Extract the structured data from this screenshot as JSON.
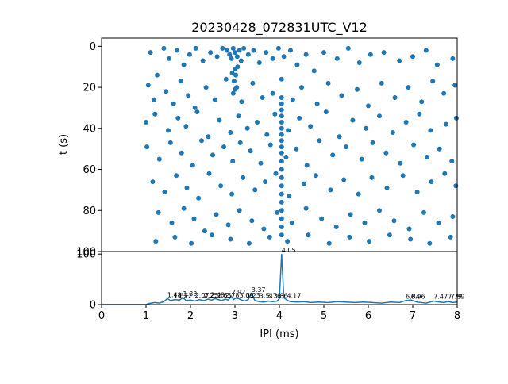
{
  "chart_data": [
    {
      "type": "scatter",
      "title": "20230428_072831UTC_V12",
      "xlabel": "",
      "ylabel": "t (s)",
      "xlim": [
        0,
        8
      ],
      "ylim": [
        100,
        -4
      ],
      "y_inverted": true,
      "yticks": [
        0,
        20,
        40,
        60,
        80,
        100
      ],
      "color": "#1f77b4",
      "grid": false,
      "points": [
        [
          1.1,
          3
        ],
        [
          1.25,
          14
        ],
        [
          1.4,
          1
        ],
        [
          1.52,
          6
        ],
        [
          1.7,
          2
        ],
        [
          1.85,
          9
        ],
        [
          1.98,
          4
        ],
        [
          2.12,
          1
        ],
        [
          2.28,
          7
        ],
        [
          2.45,
          3
        ],
        [
          2.6,
          5
        ],
        [
          2.72,
          1
        ],
        [
          2.82,
          2
        ],
        [
          2.88,
          4
        ],
        [
          2.92,
          6
        ],
        [
          2.96,
          1
        ],
        [
          3.0,
          3
        ],
        [
          3.05,
          5
        ],
        [
          3.1,
          2
        ],
        [
          3.14,
          7
        ],
        [
          3.2,
          1
        ],
        [
          3.3,
          4
        ],
        [
          3.42,
          2
        ],
        [
          3.55,
          8
        ],
        [
          3.7,
          3
        ],
        [
          3.85,
          6
        ],
        [
          3.98,
          1
        ],
        [
          4.1,
          5
        ],
        [
          4.25,
          2
        ],
        [
          4.4,
          9
        ],
        [
          4.6,
          4
        ],
        [
          4.78,
          12
        ],
        [
          5.0,
          3
        ],
        [
          5.3,
          6
        ],
        [
          5.55,
          1
        ],
        [
          5.8,
          8
        ],
        [
          6.05,
          4
        ],
        [
          6.35,
          3
        ],
        [
          6.7,
          7
        ],
        [
          7.0,
          5
        ],
        [
          7.3,
          2
        ],
        [
          7.55,
          9
        ],
        [
          7.9,
          6
        ],
        [
          1.05,
          19
        ],
        [
          1.18,
          26
        ],
        [
          1.45,
          22
        ],
        [
          1.62,
          28
        ],
        [
          1.78,
          17
        ],
        [
          1.95,
          24
        ],
        [
          2.1,
          30
        ],
        [
          2.35,
          20
        ],
        [
          2.55,
          26
        ],
        [
          2.8,
          16
        ],
        [
          3.0,
          21
        ],
        [
          3.15,
          27
        ],
        [
          3.4,
          18
        ],
        [
          3.62,
          25
        ],
        [
          3.85,
          23
        ],
        [
          4.05,
          16
        ],
        [
          4.3,
          26
        ],
        [
          4.5,
          20
        ],
        [
          4.85,
          28
        ],
        [
          5.1,
          18
        ],
        [
          5.4,
          24
        ],
        [
          5.75,
          21
        ],
        [
          6.0,
          29
        ],
        [
          6.3,
          18
        ],
        [
          6.6,
          25
        ],
        [
          6.9,
          20
        ],
        [
          7.2,
          27
        ],
        [
          7.45,
          17
        ],
        [
          7.7,
          23
        ],
        [
          7.95,
          19
        ],
        [
          1.0,
          37
        ],
        [
          1.2,
          33
        ],
        [
          1.5,
          41
        ],
        [
          1.72,
          35
        ],
        [
          1.9,
          39
        ],
        [
          2.15,
          32
        ],
        [
          2.4,
          44
        ],
        [
          2.65,
          36
        ],
        [
          2.9,
          42
        ],
        [
          3.08,
          34
        ],
        [
          3.28,
          40
        ],
        [
          3.5,
          37
        ],
        [
          3.72,
          43
        ],
        [
          3.9,
          33
        ],
        [
          4.2,
          41
        ],
        [
          4.45,
          35
        ],
        [
          4.7,
          39
        ],
        [
          5.05,
          32
        ],
        [
          5.35,
          44
        ],
        [
          5.65,
          36
        ],
        [
          5.95,
          40
        ],
        [
          6.25,
          34
        ],
        [
          6.55,
          42
        ],
        [
          6.85,
          37
        ],
        [
          7.15,
          33
        ],
        [
          7.4,
          41
        ],
        [
          7.75,
          38
        ],
        [
          7.98,
          35
        ],
        [
          1.02,
          49
        ],
        [
          1.3,
          55
        ],
        [
          1.55,
          47
        ],
        [
          1.8,
          52
        ],
        [
          2.05,
          58
        ],
        [
          2.25,
          46
        ],
        [
          2.5,
          53
        ],
        [
          2.75,
          49
        ],
        [
          2.95,
          56
        ],
        [
          3.12,
          47
        ],
        [
          3.35,
          51
        ],
        [
          3.58,
          57
        ],
        [
          3.8,
          48
        ],
        [
          4.15,
          54
        ],
        [
          4.38,
          50
        ],
        [
          4.62,
          58
        ],
        [
          4.9,
          46
        ],
        [
          5.2,
          53
        ],
        [
          5.5,
          49
        ],
        [
          5.85,
          55
        ],
        [
          6.1,
          47
        ],
        [
          6.4,
          52
        ],
        [
          6.72,
          57
        ],
        [
          7.02,
          48
        ],
        [
          7.32,
          54
        ],
        [
          7.6,
          50
        ],
        [
          7.88,
          56
        ],
        [
          1.15,
          66
        ],
        [
          1.42,
          71
        ],
        [
          1.68,
          63
        ],
        [
          1.92,
          69
        ],
        [
          2.18,
          74
        ],
        [
          2.42,
          62
        ],
        [
          2.68,
          68
        ],
        [
          2.93,
          72
        ],
        [
          3.18,
          64
        ],
        [
          3.45,
          70
        ],
        [
          3.68,
          66
        ],
        [
          3.92,
          62
        ],
        [
          4.22,
          73
        ],
        [
          4.55,
          67
        ],
        [
          4.82,
          63
        ],
        [
          5.15,
          70
        ],
        [
          5.45,
          65
        ],
        [
          5.78,
          72
        ],
        [
          6.08,
          64
        ],
        [
          6.42,
          69
        ],
        [
          6.78,
          63
        ],
        [
          7.1,
          71
        ],
        [
          7.42,
          66
        ],
        [
          7.72,
          62
        ],
        [
          7.97,
          68
        ],
        [
          1.28,
          81
        ],
        [
          1.58,
          86
        ],
        [
          1.85,
          79
        ],
        [
          2.08,
          84
        ],
        [
          2.32,
          90
        ],
        [
          2.58,
          82
        ],
        [
          2.85,
          87
        ],
        [
          3.1,
          80
        ],
        [
          3.38,
          85
        ],
        [
          3.65,
          89
        ],
        [
          3.95,
          81
        ],
        [
          4.28,
          86
        ],
        [
          4.6,
          79
        ],
        [
          4.95,
          84
        ],
        [
          5.28,
          88
        ],
        [
          5.6,
          82
        ],
        [
          5.92,
          86
        ],
        [
          6.25,
          80
        ],
        [
          6.58,
          85
        ],
        [
          6.92,
          89
        ],
        [
          7.25,
          81
        ],
        [
          7.58,
          86
        ],
        [
          7.9,
          83
        ],
        [
          1.22,
          95
        ],
        [
          1.65,
          93
        ],
        [
          2.02,
          96
        ],
        [
          2.48,
          92
        ],
        [
          2.9,
          94
        ],
        [
          3.32,
          96
        ],
        [
          3.78,
          93
        ],
        [
          4.18,
          95
        ],
        [
          4.65,
          92
        ],
        [
          5.12,
          96
        ],
        [
          5.58,
          93
        ],
        [
          6.02,
          95
        ],
        [
          6.48,
          92
        ],
        [
          6.95,
          94
        ],
        [
          7.38,
          96
        ],
        [
          7.85,
          93
        ],
        [
          4.05,
          25
        ],
        [
          4.05,
          28
        ],
        [
          4.05,
          31
        ],
        [
          4.05,
          34
        ],
        [
          4.05,
          37
        ],
        [
          4.05,
          40
        ],
        [
          4.05,
          43
        ],
        [
          4.05,
          46
        ],
        [
          4.05,
          49
        ],
        [
          4.05,
          52
        ],
        [
          4.05,
          56
        ],
        [
          4.05,
          60
        ],
        [
          4.05,
          64
        ],
        [
          4.05,
          68
        ],
        [
          4.05,
          72
        ],
        [
          4.05,
          76
        ],
        [
          4.05,
          80
        ],
        [
          4.05,
          84
        ],
        [
          4.05,
          88
        ],
        [
          4.05,
          92
        ],
        [
          3.0,
          11
        ],
        [
          3.02,
          14
        ],
        [
          2.98,
          17
        ],
        [
          3.04,
          20
        ],
        [
          2.96,
          23
        ],
        [
          3.06,
          10
        ],
        [
          2.94,
          13
        ]
      ]
    },
    {
      "type": "line",
      "title": "",
      "xlabel": "IPI (ms)",
      "ylabel": "",
      "xlim": [
        0,
        8
      ],
      "ylim": [
        0,
        105
      ],
      "xticks": [
        0,
        1,
        2,
        3,
        4,
        5,
        6,
        7,
        8
      ],
      "yticks": [
        0,
        100
      ],
      "color": "#1f77b4",
      "grid": false,
      "x": [
        0,
        1.0,
        1.05,
        1.2,
        1.3,
        1.4,
        1.48,
        1.55,
        1.65,
        1.75,
        1.83,
        1.9,
        2.0,
        2.1,
        2.2,
        2.3,
        2.4,
        2.48,
        2.55,
        2.62,
        2.7,
        2.78,
        2.85,
        2.92,
        2.97,
        3.02,
        3.08,
        3.15,
        3.22,
        3.3,
        3.37,
        3.45,
        3.55,
        3.65,
        3.75,
        3.85,
        3.95,
        4.0,
        4.05,
        4.1,
        4.17,
        4.25,
        4.4,
        4.55,
        4.7,
        4.9,
        5.1,
        5.3,
        5.5,
        5.7,
        5.9,
        6.1,
        6.3,
        6.5,
        6.7,
        6.84,
        6.96,
        7.1,
        7.3,
        7.47,
        7.6,
        7.7,
        7.79,
        7.9,
        8.0
      ],
      "y": [
        0,
        0,
        2,
        4,
        3,
        6,
        12,
        8,
        10,
        9,
        14,
        8,
        9,
        7,
        10,
        8,
        11,
        9,
        12,
        10,
        8,
        11,
        9,
        17,
        10,
        13,
        12,
        9,
        7,
        10,
        22,
        8,
        6,
        5,
        7,
        6,
        7,
        12,
        100,
        14,
        9,
        6,
        5,
        6,
        4,
        5,
        4,
        6,
        5,
        4,
        5,
        4,
        3,
        5,
        4,
        8,
        9,
        5,
        3,
        7,
        5,
        4,
        6,
        4,
        5
      ],
      "peak_labels": [
        {
          "x": 4.05,
          "y": 100,
          "text": "4.05"
        },
        {
          "x": 3.37,
          "y": 22,
          "text": "3.37"
        },
        {
          "x": 2.92,
          "y": 17,
          "text": "2.92"
        },
        {
          "x": 1.83,
          "y": 14,
          "text": "1.83"
        },
        {
          "x": 1.48,
          "y": 12,
          "text": "1.48"
        },
        {
          "x": 1.62,
          "y": 10,
          "text": "1.62"
        },
        {
          "x": 1.72,
          "y": 10,
          "text": "1.72"
        },
        {
          "x": 2.1,
          "y": 11,
          "text": "2.07"
        },
        {
          "x": 2.3,
          "y": 11,
          "text": "2.25"
        },
        {
          "x": 2.45,
          "y": 12,
          "text": "2.48"
        },
        {
          "x": 2.6,
          "y": 11,
          "text": "2.63"
        },
        {
          "x": 2.78,
          "y": 11,
          "text": "2.78"
        },
        {
          "x": 3.1,
          "y": 11,
          "text": "3.09"
        },
        {
          "x": 3.25,
          "y": 11,
          "text": "3.23"
        },
        {
          "x": 3.55,
          "y": 10,
          "text": "3.51"
        },
        {
          "x": 3.72,
          "y": 10,
          "text": "3.76"
        },
        {
          "x": 3.87,
          "y": 10,
          "text": "3.86"
        },
        {
          "x": 4.17,
          "y": 10,
          "text": "4.17"
        },
        {
          "x": 6.84,
          "y": 9,
          "text": "6.84"
        },
        {
          "x": 6.96,
          "y": 9,
          "text": "6.96"
        },
        {
          "x": 7.47,
          "y": 9,
          "text": "7.47"
        },
        {
          "x": 7.79,
          "y": 9,
          "text": "7.79"
        },
        {
          "x": 7.85,
          "y": 9,
          "text": "7.89"
        }
      ]
    }
  ]
}
